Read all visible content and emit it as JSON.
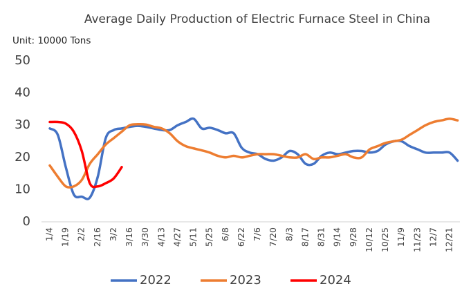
{
  "chart_data": {
    "type": "line",
    "title": "Average Daily Production of Electric Furnace Steel in China",
    "unit": "Unit: 10000 Tons",
    "categories": [
      "1/4",
      null,
      "1/19",
      null,
      "2/2",
      null,
      "2/16",
      null,
      "3/2",
      null,
      "3/16",
      null,
      "3/30",
      null,
      "4/13",
      null,
      "4/27",
      null,
      "5/11",
      null,
      "5/25",
      null,
      "6/8",
      null,
      "6/22",
      null,
      "7/6",
      null,
      "7/20",
      null,
      "8/3",
      null,
      "8/17",
      null,
      "8/31",
      null,
      "9/14",
      null,
      "9/28",
      null,
      "10/12",
      null,
      "10/25",
      null,
      "11/9",
      null,
      "11/23",
      null,
      "12/7",
      null,
      "12/21",
      null
    ],
    "series": [
      {
        "name": "2022",
        "color": "#4472c4",
        "values": [
          29,
          27,
          17,
          8.5,
          7.8,
          7.5,
          14,
          26,
          28.5,
          29,
          29.5,
          29.8,
          29.5,
          29,
          28.5,
          28.5,
          30,
          31,
          32,
          29,
          29.2,
          28.5,
          27.5,
          27.5,
          23,
          21.5,
          21,
          19.5,
          19,
          20,
          22,
          21,
          18,
          18,
          20.5,
          21.5,
          21,
          21.5,
          22,
          22,
          21.5,
          22,
          24,
          25,
          25,
          23.5,
          22.5,
          21.5,
          21.5,
          21.5,
          21.5,
          19
        ]
      },
      {
        "name": "2023",
        "color": "#ed7d31",
        "values": [
          17.5,
          14,
          11,
          11,
          13,
          18,
          21,
          24,
          26,
          28,
          30,
          30.3,
          30.2,
          29.5,
          29,
          27.5,
          25,
          23.5,
          22.8,
          22.2,
          21.5,
          20.5,
          20,
          20.5,
          20,
          20.5,
          21,
          21,
          21,
          20.5,
          20,
          20,
          21,
          19.5,
          20,
          20,
          20.5,
          21,
          20,
          20,
          22.5,
          23.5,
          24.5,
          25,
          25.5,
          27,
          28.5,
          30,
          31,
          31.5,
          32,
          31.5
        ]
      },
      {
        "name": "2024",
        "color": "#ff0000",
        "values": [
          31,
          31,
          30.5,
          28,
          22,
          12,
          11,
          12,
          13.5,
          17,
          null,
          null,
          null,
          null,
          null,
          null,
          null,
          null,
          null,
          null,
          null,
          null,
          null,
          null,
          null,
          null,
          null,
          null,
          null,
          null,
          null,
          null,
          null,
          null,
          null,
          null,
          null,
          null,
          null,
          null,
          null,
          null,
          null,
          null,
          null,
          null,
          null,
          null,
          null,
          null,
          null,
          null
        ]
      }
    ],
    "ylim": [
      0,
      50
    ],
    "yticks": [
      0,
      10,
      20,
      30,
      40,
      50
    ],
    "grid": false,
    "legend": "bottom"
  }
}
